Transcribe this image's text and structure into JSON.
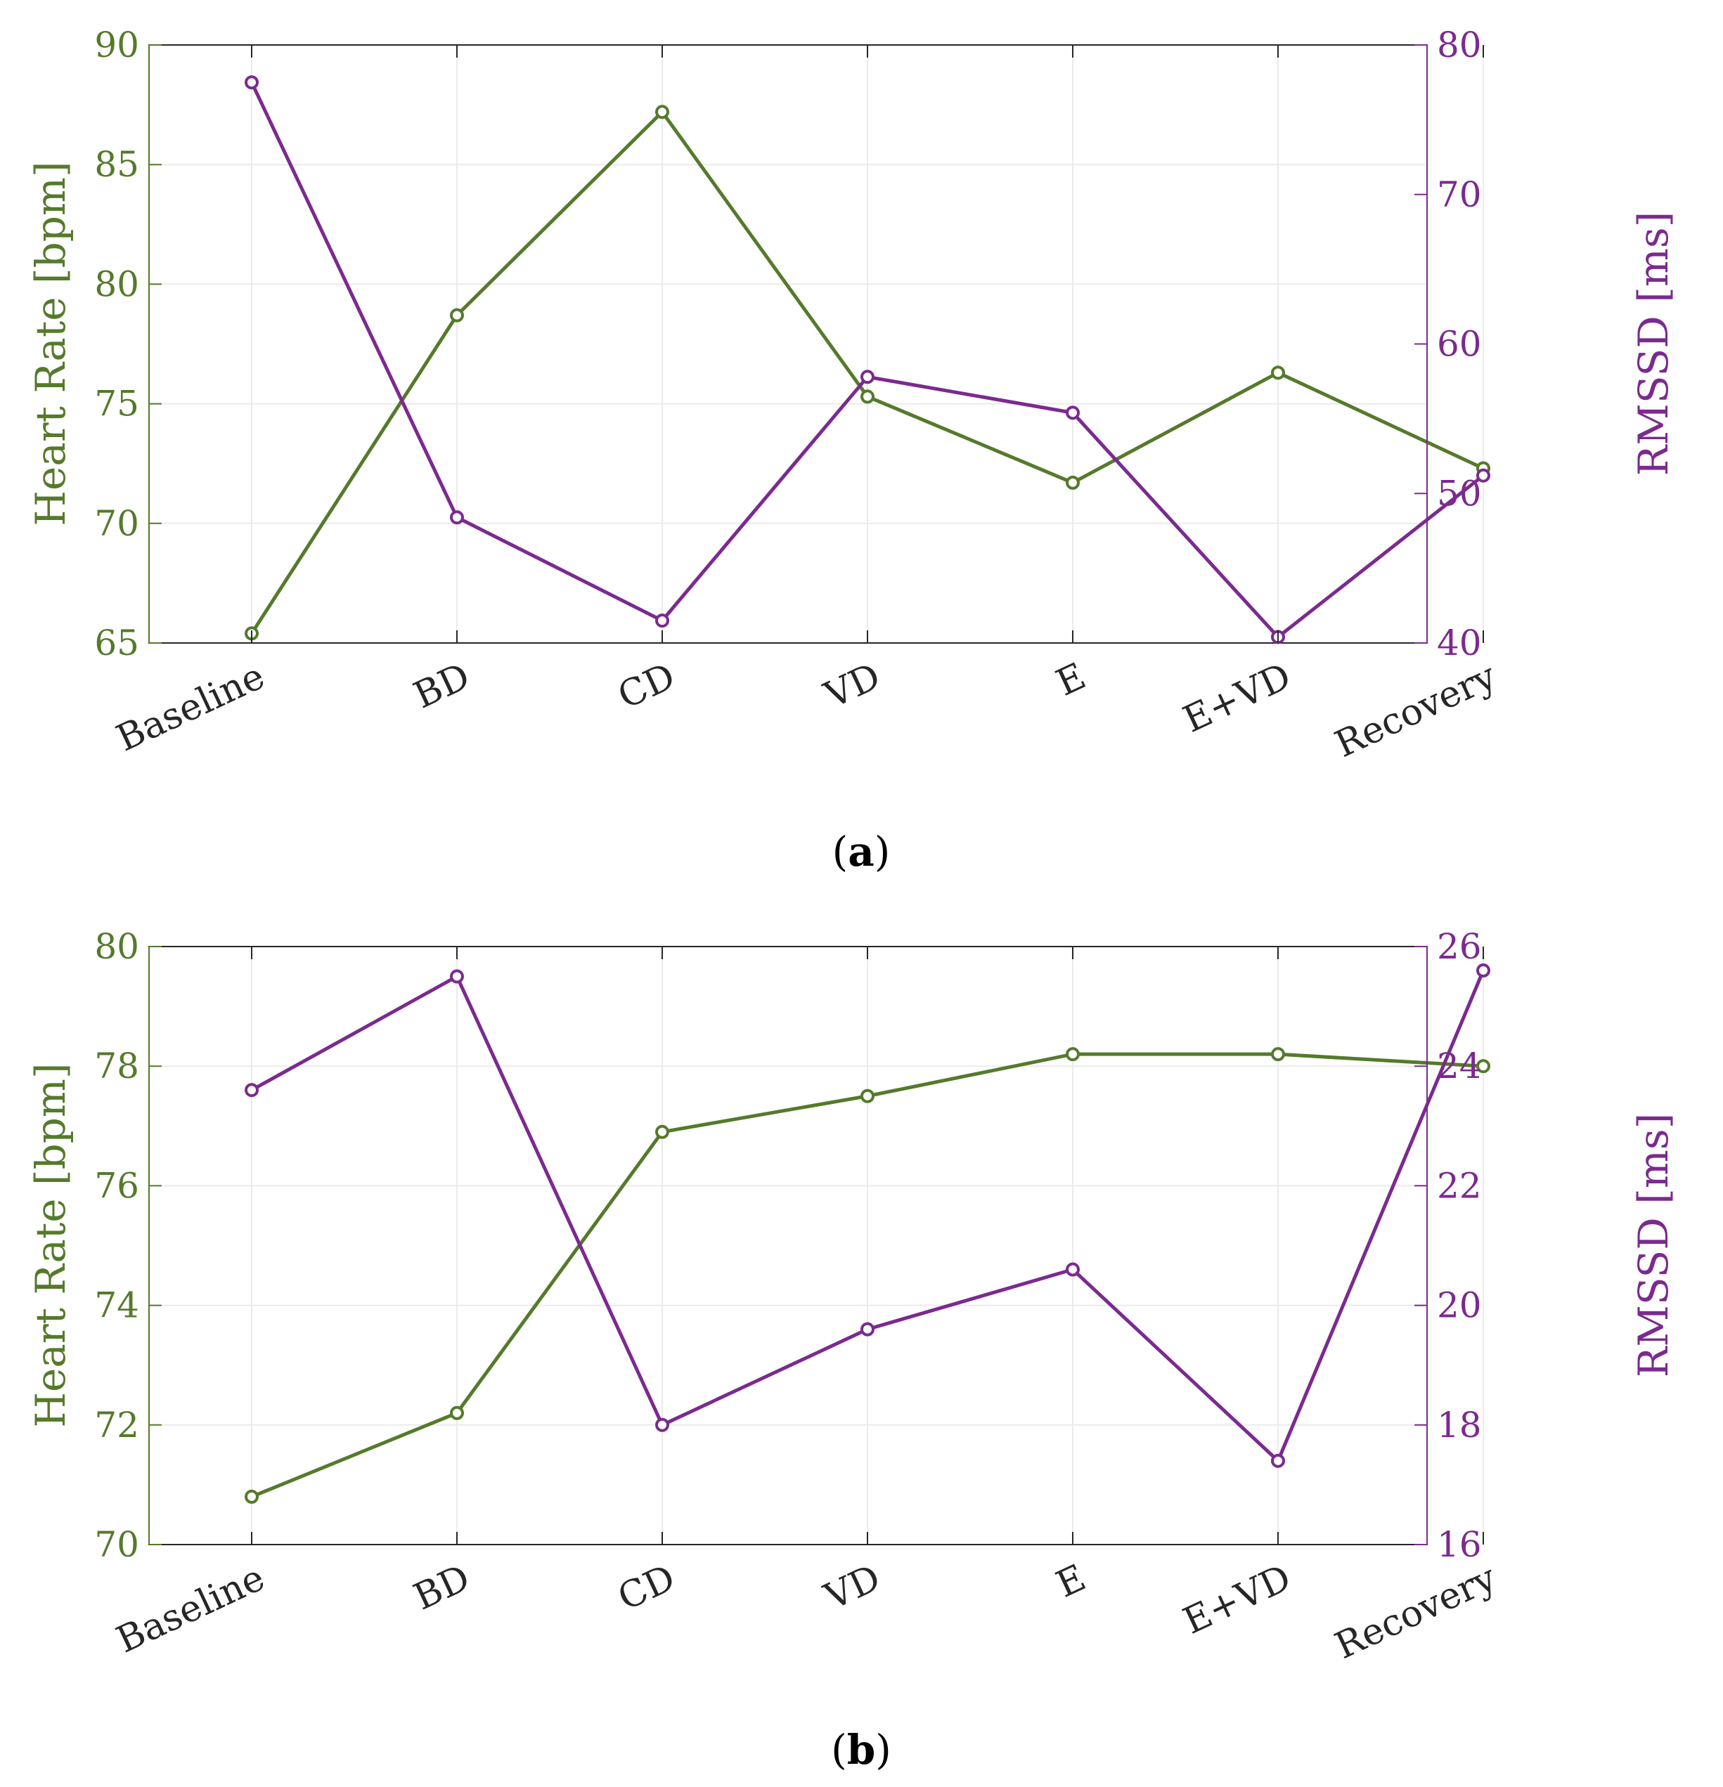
{
  "colors": {
    "heart_rate": "#557a2b",
    "rmssd": "#7b2a8f",
    "axis": "#262626",
    "grid": "#ebebeb",
    "left_axis_line": "#557a2b",
    "right_axis_line": "#7b2a8f"
  },
  "chart_data": [
    {
      "type": "line",
      "caption_open": "(",
      "caption_letter": "a",
      "caption_close": ")",
      "categories": [
        "Baseline",
        "BD",
        "CD",
        "VD",
        "E",
        "E+VD",
        "Recovery"
      ],
      "ylabel_left": "Heart Rate [bpm]",
      "ylabel_right": "RMSSD [ms]",
      "ylim_left": [
        65,
        90
      ],
      "ylim_right": [
        40,
        80
      ],
      "yticks_left": [
        "65",
        "70",
        "75",
        "80",
        "85",
        "90"
      ],
      "yticks_right": [
        "40",
        "50",
        "60",
        "70",
        "80"
      ],
      "series": [
        {
          "name": "Heart Rate",
          "axis": "left",
          "values": [
            65.4,
            78.7,
            87.2,
            75.3,
            71.7,
            76.3,
            72.3
          ]
        },
        {
          "name": "RMSSD",
          "axis": "right",
          "values": [
            77.5,
            48.4,
            41.5,
            57.8,
            55.4,
            40.4,
            51.2
          ]
        }
      ],
      "grid": true
    },
    {
      "type": "line",
      "caption_open": "(",
      "caption_letter": "b",
      "caption_close": ")",
      "categories": [
        "Baseline",
        "BD",
        "CD",
        "VD",
        "E",
        "E+VD",
        "Recovery"
      ],
      "ylabel_left": "Heart Rate [bpm]",
      "ylabel_right": "RMSSD [ms]",
      "ylim_left": [
        70,
        80
      ],
      "ylim_right": [
        16,
        26
      ],
      "yticks_left": [
        "70",
        "72",
        "74",
        "76",
        "78",
        "80"
      ],
      "yticks_right": [
        "16",
        "18",
        "20",
        "22",
        "24",
        "26"
      ],
      "series": [
        {
          "name": "Heart Rate",
          "axis": "left",
          "values": [
            70.8,
            72.2,
            76.9,
            77.5,
            78.2,
            78.2,
            78.0
          ]
        },
        {
          "name": "RMSSD",
          "axis": "right",
          "values": [
            23.6,
            25.5,
            18.0,
            19.6,
            20.6,
            17.4,
            25.6
          ]
        }
      ],
      "grid": true
    }
  ]
}
